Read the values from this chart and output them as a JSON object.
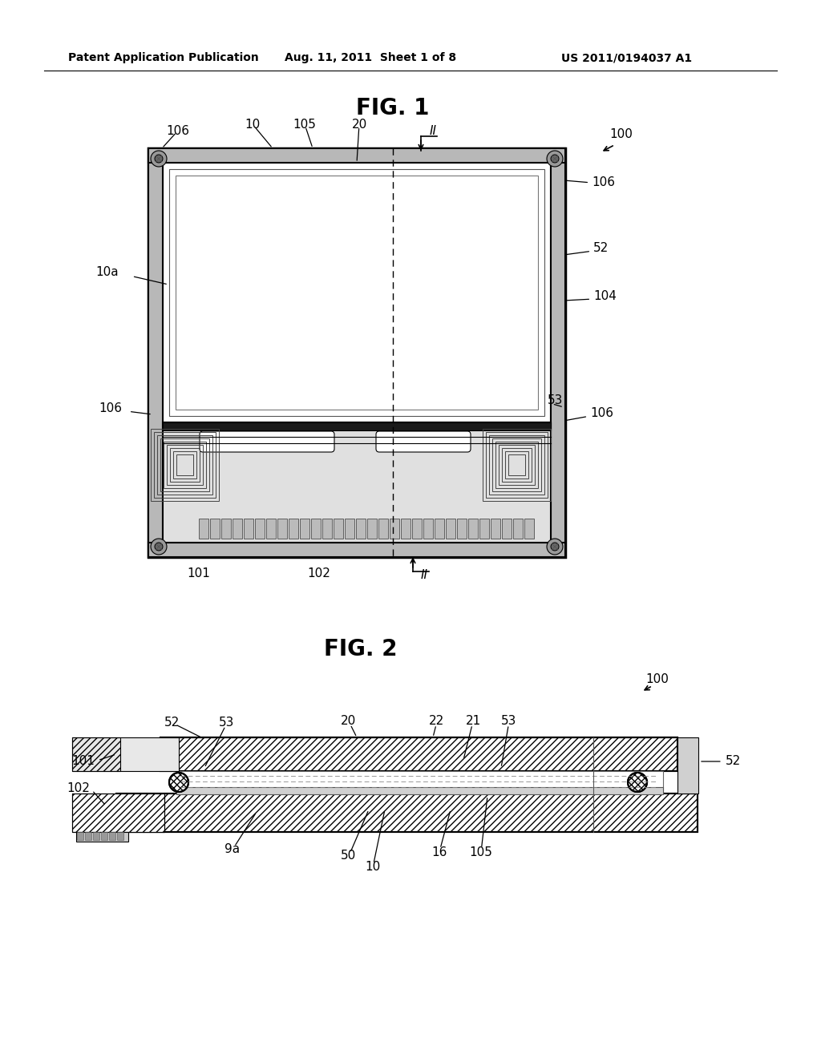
{
  "bg_color": "#ffffff",
  "fig_width": 10.24,
  "fig_height": 13.2,
  "header_text": "Patent Application Publication",
  "header_date": "Aug. 11, 2011  Sheet 1 of 8",
  "header_patent": "US 2011/0194037 A1",
  "fig1_title": "FIG. 1",
  "fig2_title": "FIG. 2",
  "line_color": "#000000",
  "gray1": "#e0e0e0",
  "gray2": "#c0c0c0",
  "gray3": "#888888",
  "gray4": "#444444",
  "ann_fs": 11
}
